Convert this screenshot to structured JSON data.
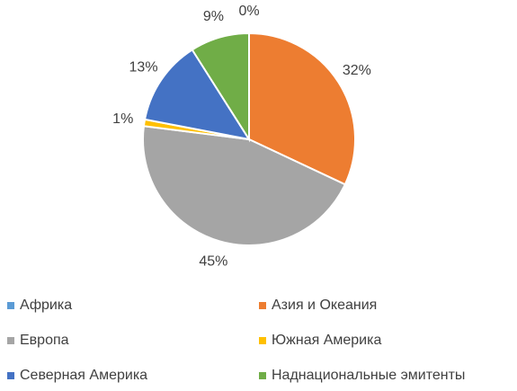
{
  "chart_data": {
    "type": "pie",
    "categories": [
      "Африка",
      "Азия и Океания",
      "Европа",
      "Южная Америка",
      "Северная Америка",
      "Наднациональные эмитенты"
    ],
    "values": [
      0,
      32,
      45,
      1,
      13,
      9
    ],
    "value_labels": [
      "0%",
      "32%",
      "45%",
      "1%",
      "13%",
      "9%"
    ],
    "colors": [
      "#5b9bd5",
      "#ed7d31",
      "#a5a5a5",
      "#ffc000",
      "#4472c4",
      "#70ad47"
    ],
    "legend": "bottom"
  }
}
